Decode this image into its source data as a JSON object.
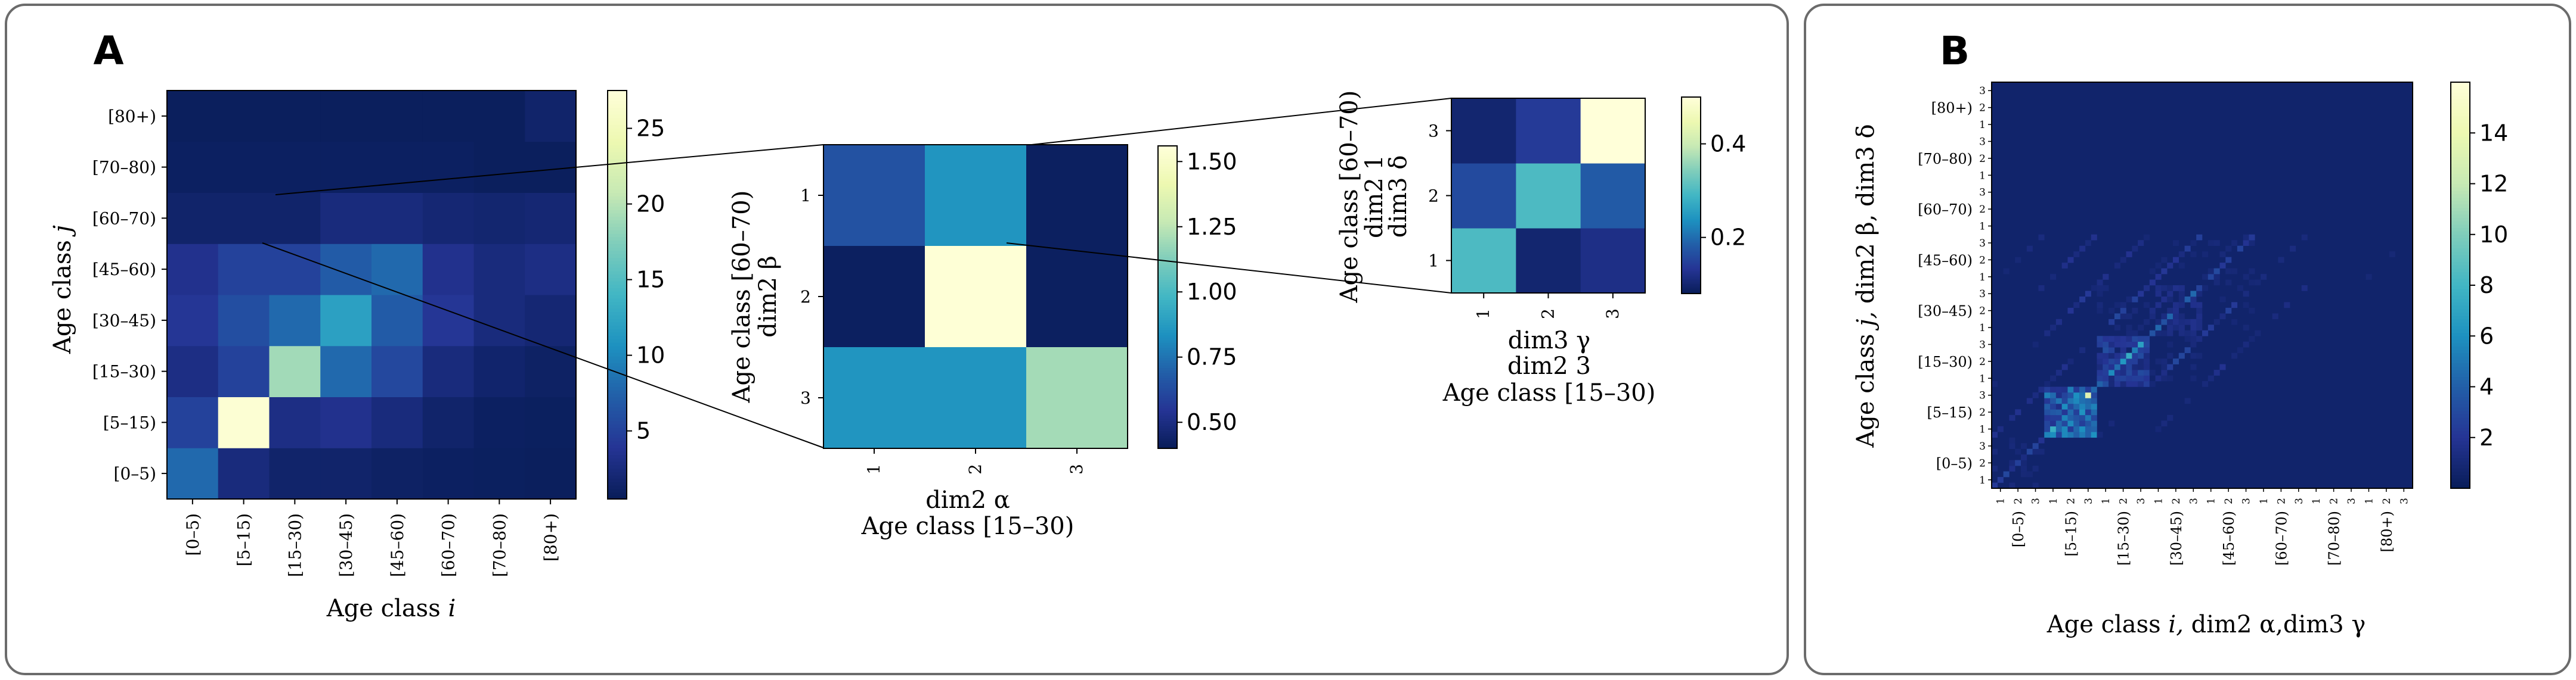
{
  "panel_labels": {
    "a": "A",
    "b": "B"
  },
  "colormap": [
    "#081d58",
    "#253494",
    "#225ea8",
    "#1d91c0",
    "#41b6c4",
    "#7fcdbb",
    "#c7e9b4",
    "#edf8b1",
    "#ffffd9"
  ],
  "chart_data": [
    {
      "id": "A-main",
      "type": "heatmap",
      "xlabel": "Age class i",
      "ylabel": "Age class j",
      "categories_x": [
        "[0–5)",
        "[5–15)",
        "[15–30)",
        "[30–45)",
        "[45–60)",
        "[60–70)",
        "[70–80)",
        "[80+)"
      ],
      "categories_y": [
        "[0–5)",
        "[5–15)",
        "[15–30)",
        "[30–45)",
        "[45–60)",
        "[60–70)",
        "[70–80)",
        "[80+)"
      ],
      "values": [
        [
          8,
          2.5,
          1.5,
          1.5,
          1.2,
          1.0,
          0.9,
          0.8
        ],
        [
          5,
          27,
          3,
          3.5,
          2.5,
          1.5,
          1.0,
          0.9
        ],
        [
          3,
          5,
          19,
          8,
          5.5,
          2.5,
          1.6,
          1.2
        ],
        [
          4,
          6,
          8,
          12,
          7,
          4,
          2.5,
          2
        ],
        [
          3.5,
          5,
          5,
          7,
          8,
          3.5,
          2.5,
          3
        ],
        [
          1.5,
          1.5,
          1.5,
          2.5,
          2.5,
          2.0,
          1.8,
          2
        ],
        [
          1.0,
          1.0,
          1.0,
          1.0,
          1.0,
          1.0,
          0.8,
          0.8
        ],
        [
          0.8,
          0.8,
          0.8,
          0.8,
          0.8,
          0.8,
          0.8,
          1.5
        ]
      ],
      "vmin": 0.5,
      "vmax": 27.5,
      "colorbar_ticks": [
        5,
        10,
        15,
        20,
        25
      ]
    },
    {
      "id": "A-zoom-dim2",
      "type": "heatmap",
      "xlabel": "dim2 α",
      "xlabel2": "Age class [15–30)",
      "ylabel": "dim2 β",
      "ylabel2": "Age class [60–70)",
      "categories_x": [
        "1",
        "2",
        "3"
      ],
      "categories_y": [
        "1",
        "2",
        "3"
      ],
      "values": [
        [
          0.65,
          0.85,
          0.42
        ],
        [
          0.42,
          1.55,
          0.42
        ],
        [
          0.85,
          0.85,
          1.2
        ]
      ],
      "vmin": 0.4,
      "vmax": 1.56,
      "colorbar_ticks": [
        0.5,
        0.75,
        1.0,
        1.25,
        1.5
      ],
      "colorbar_tick_labels": [
        "0.50",
        "0.75",
        "1.00",
        "1.25",
        "1.50"
      ]
    },
    {
      "id": "A-zoom-dim3",
      "type": "heatmap",
      "xlabel": "dim3 γ",
      "xlabel2": "dim2 3",
      "xlabel3": "Age class [15–30)",
      "ylabel": "dim3 δ",
      "ylabel2": "dim2 1",
      "ylabel3": "Age class [60–70)",
      "categories_x": [
        "1",
        "2",
        "3"
      ],
      "categories_y": [
        "1",
        "2",
        "3"
      ],
      "values": [
        [
          0.3,
          0.1,
          0.12
        ],
        [
          0.16,
          0.3,
          0.18
        ],
        [
          0.1,
          0.14,
          0.5
        ]
      ],
      "vmin": 0.08,
      "vmax": 0.5,
      "colorbar_ticks": [
        0.2,
        0.4
      ],
      "colorbar_tick_labels": [
        "0.2",
        "0.4"
      ]
    },
    {
      "id": "B",
      "type": "heatmap",
      "xlabel": "Age class i, dim2 α,dim3 γ",
      "ylabel": "Age class j, dim2 β, dim3 δ",
      "categories_x": [
        "[0–5)",
        "[5–15)",
        "[15–30)",
        "[30–45)",
        "[45–60)",
        "[60–70)",
        "[70–80)",
        "[80+)"
      ],
      "categories_y": [
        "[0–5)",
        "[5–15)",
        "[15–30)",
        "[30–45)",
        "[45–60)",
        "[60–70)",
        "[70–80)",
        "[80+)"
      ],
      "sub_ticks": [
        "1",
        "2",
        "3"
      ],
      "grid_size": 72,
      "vmin": 0.0,
      "vmax": 16,
      "colorbar_ticks": [
        2,
        4,
        6,
        8,
        10,
        12,
        14
      ]
    }
  ]
}
